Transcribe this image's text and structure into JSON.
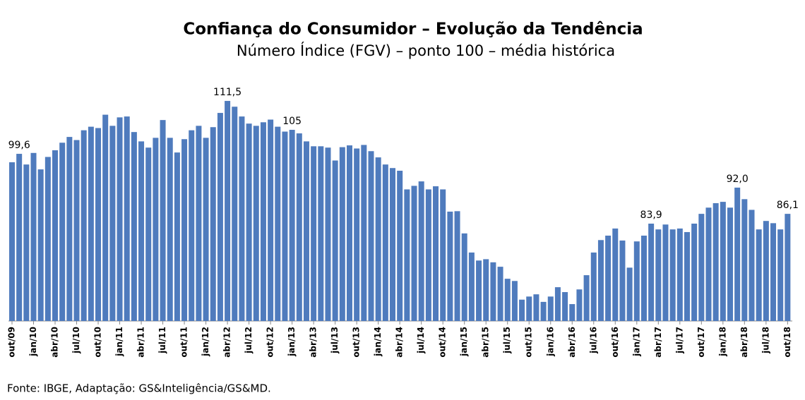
{
  "chart_data": {
    "type": "bar",
    "title": "Confiança do Consumidor – Evolução da Tendência",
    "subtitle": "Número Índice (FGV) – ponto 100 – média histórica",
    "source": "Fonte: IBGE,  Adaptação: GS&Inteligência/GS&MD.",
    "color": "#4f7bbd",
    "ylim": [
      62,
      115
    ],
    "categories": [
      "out/09",
      null,
      null,
      "jan/10",
      null,
      null,
      "abr/10",
      null,
      null,
      "jul/10",
      null,
      null,
      "out/10",
      null,
      null,
      "jan/11",
      null,
      null,
      "abr/11",
      null,
      null,
      "jul/11",
      null,
      null,
      "out/11",
      null,
      null,
      "jan/12",
      null,
      null,
      "abr/12",
      null,
      null,
      "jul/12",
      null,
      null,
      "out/12",
      null,
      null,
      "jan/13",
      null,
      null,
      "abr/13",
      null,
      null,
      "jul/13",
      null,
      null,
      "out/13",
      null,
      null,
      "jan/14",
      null,
      null,
      "abr/14",
      null,
      null,
      "jul/14",
      null,
      null,
      "out/14",
      null,
      null,
      "jan/15",
      null,
      null,
      "abr/15",
      null,
      null,
      "jul/15",
      null,
      null,
      "out/15",
      null,
      null,
      "jan/16",
      null,
      null,
      "abr/16",
      null,
      null,
      "jul/16",
      null,
      null,
      "out/16",
      null,
      null,
      "jan/17",
      null,
      null,
      "abr/17",
      null,
      null,
      "jul/17",
      null,
      null,
      "out/17",
      null,
      null,
      "jan/18",
      null,
      null,
      "abr/18",
      null,
      null,
      "jul/18",
      null,
      null,
      "out/18"
    ],
    "values": [
      97.7,
      99.6,
      97.2,
      99.8,
      96.1,
      98.9,
      100.4,
      102.1,
      103.4,
      102.7,
      104.9,
      105.7,
      105.4,
      108.4,
      105.9,
      107.8,
      108.0,
      104.5,
      102.4,
      101.0,
      103.2,
      107.2,
      103.2,
      99.9,
      102.9,
      104.9,
      105.9,
      103.2,
      105.6,
      108.8,
      111.5,
      110.2,
      108.0,
      106.4,
      105.9,
      106.7,
      107.3,
      105.7,
      104.6,
      105,
      104.2,
      102.4,
      101.3,
      101.3,
      101.0,
      98.1,
      101.1,
      101.5,
      100.8,
      101.6,
      100.2,
      98.8,
      97.2,
      96.4,
      95.8,
      91.6,
      92.4,
      93.4,
      91.6,
      92.3,
      91.6,
      86.6,
      86.7,
      81.7,
      77.4,
      75.6,
      75.9,
      75.2,
      74.2,
      71.5,
      71.0,
      66.8,
      67.5,
      68.0,
      66.3,
      67.5,
      69.6,
      68.5,
      65.8,
      69.1,
      72.3,
      77.4,
      80.2,
      81.2,
      82.8,
      80.1,
      74.0,
      79.9,
      81.2,
      83.9,
      82.6,
      83.7,
      82.6,
      82.8,
      82.0,
      83.9,
      86.1,
      87.5,
      88.5,
      88.8,
      87.5,
      92.0,
      89.4,
      87.0,
      82.6,
      84.5,
      84.0,
      82.6,
      86.1
    ],
    "value_labels": [
      null,
      "99,6",
      null,
      null,
      null,
      null,
      null,
      null,
      null,
      null,
      null,
      null,
      null,
      null,
      null,
      null,
      null,
      null,
      null,
      null,
      null,
      null,
      null,
      null,
      null,
      null,
      null,
      null,
      null,
      null,
      "111,5",
      null,
      null,
      null,
      null,
      null,
      null,
      null,
      null,
      "105",
      null,
      null,
      null,
      null,
      null,
      null,
      null,
      null,
      null,
      null,
      null,
      null,
      null,
      null,
      null,
      null,
      null,
      null,
      null,
      null,
      null,
      null,
      null,
      null,
      null,
      null,
      null,
      null,
      null,
      null,
      null,
      null,
      null,
      null,
      null,
      null,
      null,
      null,
      null,
      null,
      null,
      null,
      null,
      null,
      null,
      null,
      null,
      null,
      null,
      "83,9",
      null,
      null,
      null,
      null,
      null,
      null,
      null,
      null,
      null,
      null,
      null,
      "92,0",
      null,
      null,
      null,
      null,
      null,
      null,
      "86,1"
    ]
  }
}
